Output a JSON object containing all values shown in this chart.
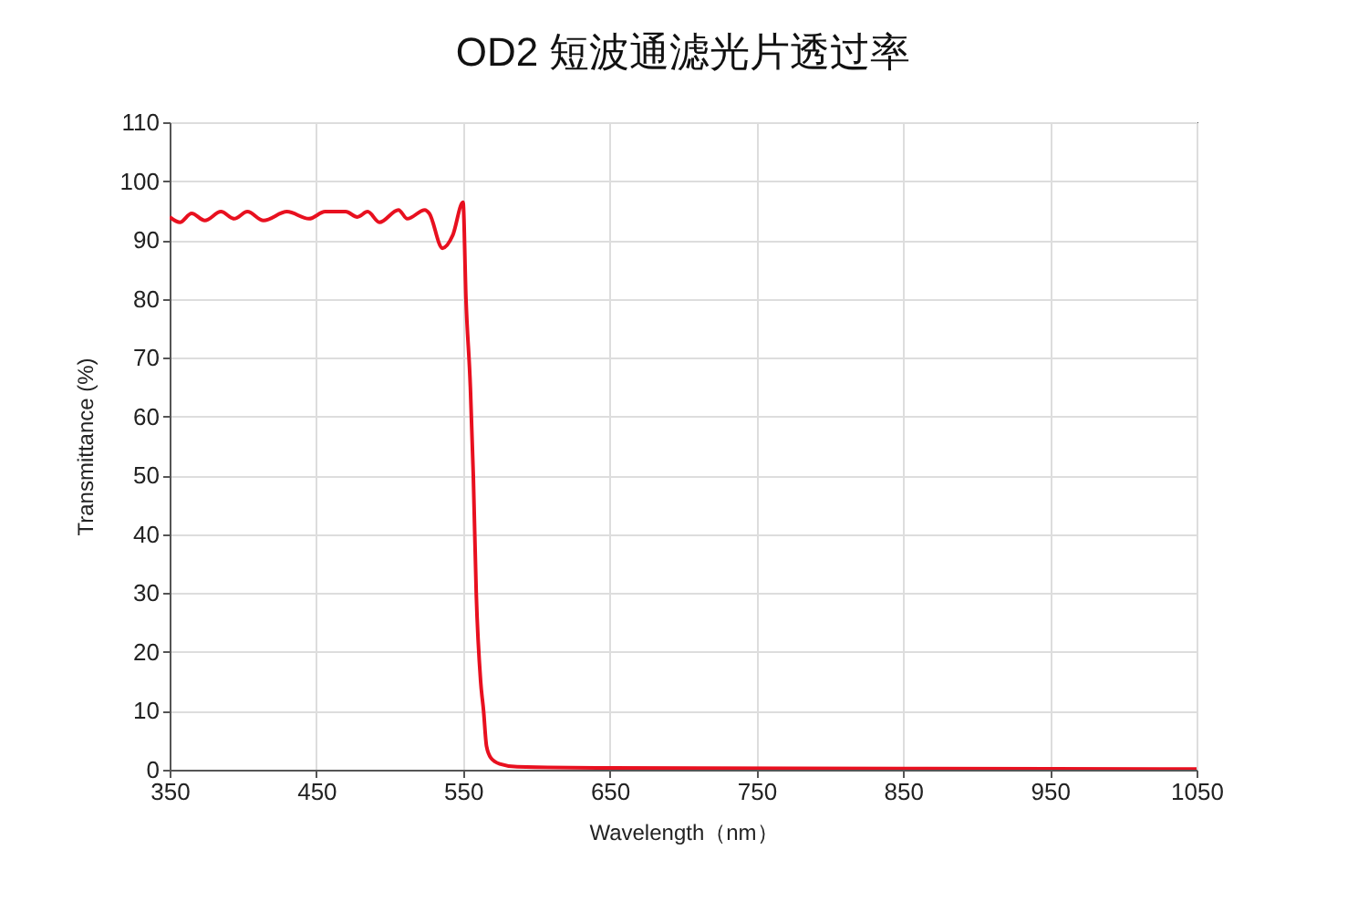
{
  "chart_data": {
    "type": "line",
    "title": "OD2 短波通滤光片透过率",
    "xlabel": "Wavelength（nm）",
    "ylabel": "Transmittance (%)",
    "x": [
      350,
      357,
      365,
      374,
      385,
      394,
      403,
      414,
      430,
      445,
      456,
      470,
      478,
      485,
      493,
      506,
      512,
      524,
      527,
      536,
      543,
      550,
      552,
      555,
      557,
      559,
      562,
      564,
      566,
      569,
      575,
      587,
      650,
      850,
      1050
    ],
    "series": [
      {
        "color": "#e8101f",
        "values": [
          93.9,
          93.0,
          94.5,
          93.3,
          94.8,
          93.6,
          94.8,
          93.3,
          94.8,
          93.6,
          94.8,
          94.8,
          93.9,
          94.8,
          93.0,
          95.1,
          93.6,
          95.1,
          94.5,
          88.6,
          90.8,
          96.4,
          80,
          65,
          50,
          30,
          15,
          10,
          4,
          2,
          1,
          0.5,
          0.3,
          0.2,
          0.1
        ]
      }
    ],
    "xlim": [
      350,
      1050
    ],
    "xticks": [
      350,
      450,
      550,
      650,
      750,
      850,
      950,
      1050
    ],
    "ylim": [
      0,
      110
    ],
    "yticks": [
      0,
      10,
      20,
      30,
      40,
      50,
      60,
      70,
      80,
      90,
      100,
      110
    ],
    "grid": true,
    "marker": "none",
    "line_style": "solid"
  }
}
